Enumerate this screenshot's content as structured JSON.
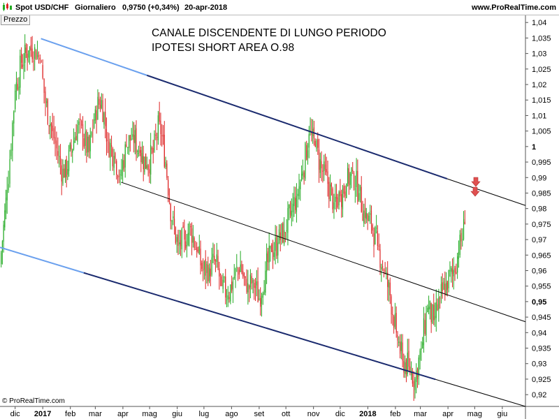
{
  "header": {
    "symbol": "Spot USD/CHF",
    "period": "Giornaliero",
    "price": "0,9750 (+0,34%)",
    "date": "20-apr-2018",
    "site": "www.ProRealTime.com"
  },
  "panel_tag": "Prezzo",
  "annotations": [
    "CANALE DISCENDENTE DI LUNGO PERIODO",
    "IPOTESI SHORT AREA O.98"
  ],
  "copyright": "© ProRealTime.com",
  "colors": {
    "up": "#22aa22",
    "down": "#dd2222",
    "channel_dark": "#1a2a6e",
    "channel_light": "#6aa0ee",
    "midline": "#000000",
    "arrow": "#e05050"
  },
  "chart_data": {
    "type": "candlestick",
    "y_axis": {
      "ticks": [
        "1,04",
        "1,035",
        "1,03",
        "1,025",
        "1,02",
        "1,015",
        "1,01",
        "1,005",
        "1",
        "0,995",
        "0,99",
        "0,985",
        "0,98",
        "0,975",
        "0,97",
        "0,965",
        "0,96",
        "0,955",
        "0,95",
        "0,945",
        "0,94",
        "0,935",
        "0,93",
        "0,925",
        "0,92"
      ],
      "tick_values": [
        1.04,
        1.035,
        1.03,
        1.025,
        1.02,
        1.015,
        1.01,
        1.005,
        1.0,
        0.995,
        0.99,
        0.985,
        0.98,
        0.975,
        0.97,
        0.965,
        0.96,
        0.955,
        0.95,
        0.945,
        0.94,
        0.935,
        0.93,
        0.925,
        0.92
      ],
      "bold_ticks": [
        "1",
        "0,95"
      ],
      "ylim": [
        0.9162,
        1.0423
      ]
    },
    "x_axis": {
      "labels": [
        "dic",
        "2017",
        "feb",
        "mar",
        "apr",
        "mag",
        "giu",
        "lug",
        "ago",
        "set",
        "ott",
        "nov",
        "dic",
        "2018",
        "feb",
        "mar",
        "apr",
        "mag",
        "giu"
      ],
      "bold_labels": [
        "2017",
        "2018"
      ],
      "label_dates": [
        "2016-12-01",
        "2017-01-01",
        "2017-02-01",
        "2017-03-01",
        "2017-04-01",
        "2017-05-01",
        "2017-06-01",
        "2017-07-01",
        "2017-08-01",
        "2017-09-01",
        "2017-10-01",
        "2017-11-01",
        "2017-12-01",
        "2018-01-01",
        "2018-02-01",
        "2018-03-01",
        "2018-04-01",
        "2018-05-01",
        "2018-06-01"
      ],
      "xlim": [
        "2016-11-14",
        "2018-06-27"
      ]
    },
    "series": [
      {
        "dates": [
          "2016-11-14",
          "2016-11-22",
          "2016-12-01",
          "2016-12-08",
          "2016-12-16",
          "2016-12-23",
          "2016-12-29",
          "2017-01-04",
          "2017-01-12",
          "2017-01-18",
          "2017-01-25",
          "2017-02-02",
          "2017-02-09",
          "2017-02-15",
          "2017-02-22",
          "2017-03-01",
          "2017-03-08",
          "2017-03-15",
          "2017-03-22",
          "2017-03-29",
          "2017-04-05",
          "2017-04-12",
          "2017-04-20",
          "2017-04-28",
          "2017-05-05",
          "2017-05-12",
          "2017-05-19",
          "2017-05-26",
          "2017-06-02",
          "2017-06-09",
          "2017-06-16",
          "2017-06-23",
          "2017-06-30",
          "2017-07-07",
          "2017-07-14",
          "2017-07-21",
          "2017-07-28",
          "2017-08-04",
          "2017-08-11",
          "2017-08-18",
          "2017-08-25",
          "2017-09-01",
          "2017-09-08",
          "2017-09-15",
          "2017-09-22",
          "2017-09-29",
          "2017-10-06",
          "2017-10-13",
          "2017-10-20",
          "2017-10-27",
          "2017-11-03",
          "2017-11-10",
          "2017-11-17",
          "2017-11-24",
          "2017-12-01",
          "2017-12-08",
          "2017-12-15",
          "2017-12-22",
          "2017-12-29",
          "2018-01-05",
          "2018-01-12",
          "2018-01-19",
          "2018-01-26",
          "2018-02-02",
          "2018-02-09",
          "2018-02-16",
          "2018-02-23",
          "2018-03-02",
          "2018-03-09",
          "2018-03-16",
          "2018-03-23",
          "2018-03-30",
          "2018-04-06",
          "2018-04-13",
          "2018-04-20"
        ],
        "close": [
          0.962,
          0.986,
          1.018,
          1.027,
          1.031,
          1.032,
          1.028,
          1.014,
          1.005,
          0.997,
          0.99,
          0.999,
          1.007,
          1.003,
          0.998,
          1.012,
          1.015,
          1.002,
          0.997,
          0.991,
          1.0,
          1.004,
          0.998,
          0.994,
          0.998,
          1.008,
          0.995,
          0.976,
          0.968,
          0.97,
          0.974,
          0.966,
          0.96,
          0.961,
          0.963,
          0.955,
          0.952,
          0.958,
          0.962,
          0.953,
          0.957,
          0.951,
          0.96,
          0.966,
          0.969,
          0.973,
          0.978,
          0.984,
          0.992,
          1.004,
          1.0,
          0.993,
          0.988,
          0.982,
          0.984,
          0.988,
          0.992,
          0.985,
          0.977,
          0.975,
          0.968,
          0.96,
          0.952,
          0.94,
          0.931,
          0.929,
          0.925,
          0.935,
          0.948,
          0.944,
          0.951,
          0.956,
          0.959,
          0.966,
          0.975
        ]
      }
    ],
    "channel": {
      "upper": [
        {
          "date": "2016-12-30",
          "y": 1.0348
        },
        {
          "date": "2018-06-27",
          "y": 0.981
        }
      ],
      "middle": [
        {
          "date": "2017-03-30",
          "y": 0.9885
        },
        {
          "date": "2018-06-27",
          "y": 0.9435
        }
      ],
      "lower": [
        {
          "date": "2016-11-14",
          "y": 0.9675
        },
        {
          "date": "2018-06-27",
          "y": 0.9162
        }
      ]
    }
  }
}
